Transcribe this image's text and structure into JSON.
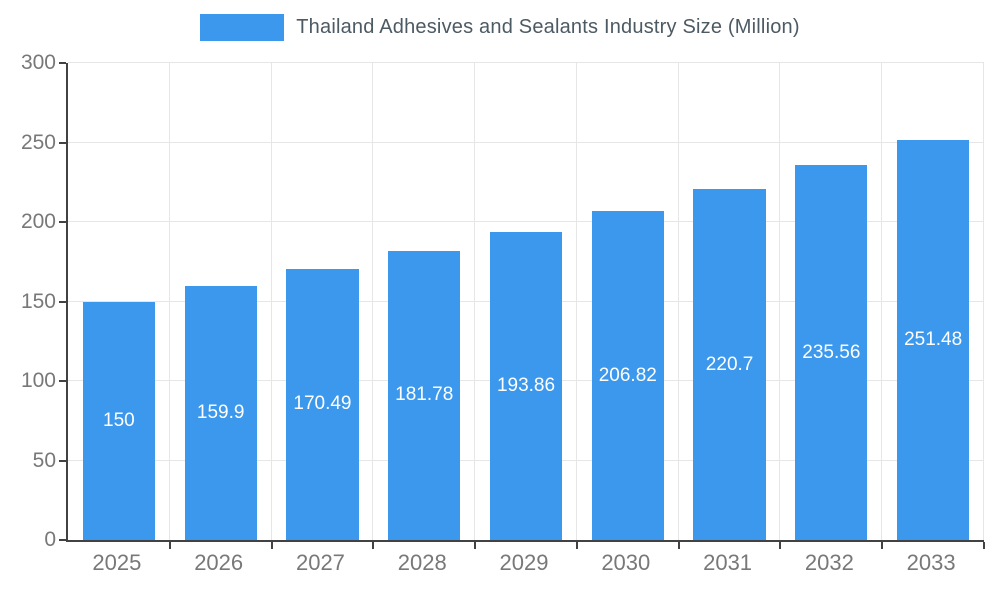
{
  "colors": {
    "bar": "#3b98ec",
    "title_text": "#4c5a64",
    "axis_text": "#787878",
    "grid": "#e6e6e6",
    "axis_line": "#424242",
    "bar_label": "#ffffff"
  },
  "chart_data": {
    "type": "bar",
    "title": "Thailand Adhesives and Sealants Industry Size (Million)",
    "categories": [
      "2025",
      "2026",
      "2027",
      "2028",
      "2029",
      "2030",
      "2031",
      "2032",
      "2033"
    ],
    "values": [
      150,
      159.9,
      170.49,
      181.78,
      193.86,
      206.82,
      220.7,
      235.56,
      251.48
    ],
    "value_labels": [
      "150",
      "159.9",
      "170.49",
      "181.78",
      "193.86",
      "206.82",
      "220.7",
      "235.56",
      "251.48"
    ],
    "xlabel": "",
    "ylabel": "",
    "ylim": [
      0,
      300
    ],
    "yticks": [
      0,
      50,
      100,
      150,
      200,
      250,
      300
    ],
    "grid": true,
    "legend_position": "top",
    "bar_label_position": "center"
  }
}
